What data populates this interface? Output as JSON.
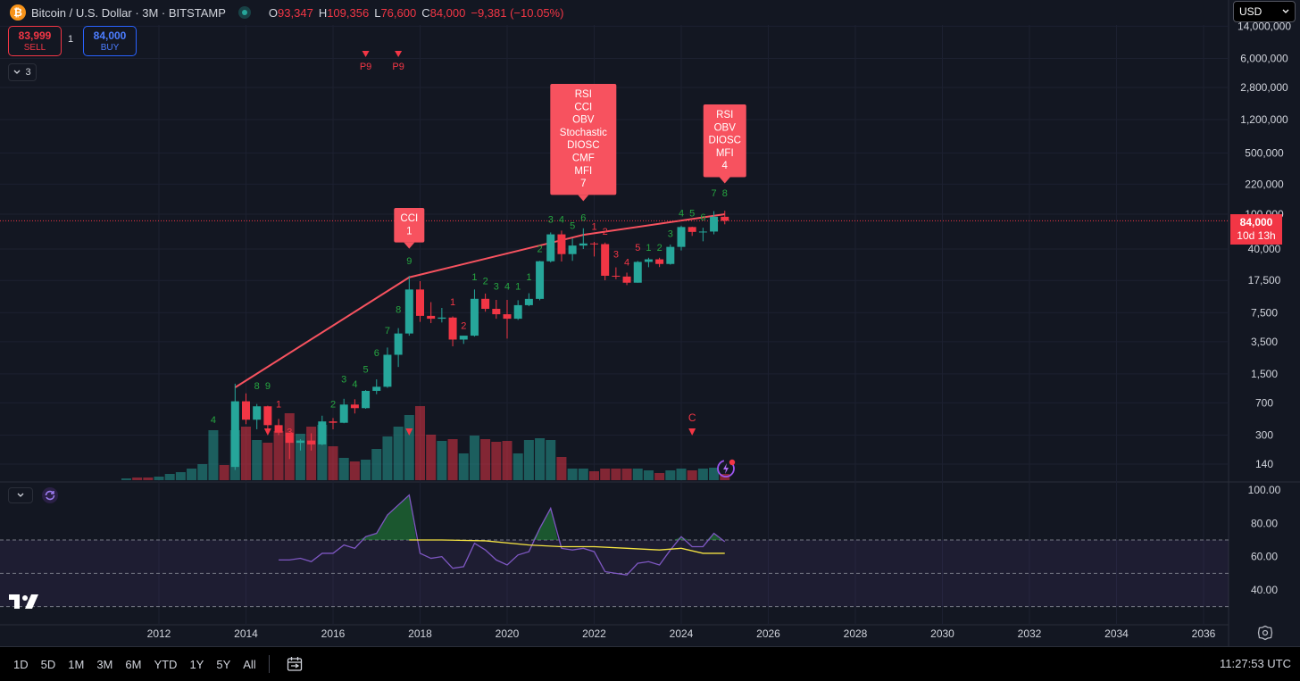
{
  "header": {
    "symbol_title": "Bitcoin / U.S. Dollar · 3M · BITSTAMP",
    "open_label": "O",
    "open": "93,347",
    "high_label": "H",
    "high": "109,356",
    "low_label": "L",
    "low": "76,600",
    "close_label": "C",
    "close": "84,000",
    "change": "−9,381 (−10.05%)"
  },
  "trade": {
    "sell_price": "83,999",
    "sell_label": "SELL",
    "buy_price": "84,000",
    "buy_label": "BUY",
    "quantity": "1"
  },
  "indicators_collapse": {
    "count": "3"
  },
  "currency": {
    "selected": "USD"
  },
  "price_tag": {
    "price": "84,000",
    "countdown": "10d 13h"
  },
  "bottom": {
    "ranges": [
      "1D",
      "5D",
      "1M",
      "3M",
      "6M",
      "YTD",
      "1Y",
      "5Y",
      "All"
    ],
    "clock": "11:27:53 UTC"
  },
  "colors": {
    "up": "#26a69a",
    "down": "#f23645",
    "rsi_line": "#7e57c2",
    "rsi_ma": "#f5e342",
    "trendline": "#f7525f",
    "background": "#131722"
  },
  "chart_data": {
    "type": "candlestick",
    "y_scale": "log",
    "price_axis_ticks": [
      "14,000,000",
      "6,000,000",
      "2,800,000",
      "1,200,000",
      "500,000",
      "220,000",
      "100,000",
      "40,000",
      "17,500",
      "7,500",
      "3,500",
      "1,500",
      "700",
      "300",
      "140"
    ],
    "x_axis_ticks": [
      "2012",
      "2014",
      "2016",
      "2018",
      "2020",
      "2022",
      "2024",
      "2026",
      "2028",
      "2030",
      "2032",
      "2034",
      "2036"
    ],
    "candles": [
      {
        "t": 2013.75,
        "o": 130,
        "h": 1160,
        "l": 120,
        "c": 730
      },
      {
        "t": 2014.0,
        "o": 730,
        "h": 900,
        "l": 400,
        "c": 450
      },
      {
        "t": 2014.25,
        "o": 450,
        "h": 680,
        "l": 350,
        "c": 640
      },
      {
        "t": 2014.5,
        "o": 640,
        "h": 650,
        "l": 350,
        "c": 390
      },
      {
        "t": 2014.75,
        "o": 390,
        "h": 460,
        "l": 300,
        "c": 320
      },
      {
        "t": 2015.0,
        "o": 320,
        "h": 320,
        "l": 160,
        "c": 245
      },
      {
        "t": 2015.25,
        "o": 245,
        "h": 270,
        "l": 200,
        "c": 260
      },
      {
        "t": 2015.5,
        "o": 260,
        "h": 315,
        "l": 200,
        "c": 235
      },
      {
        "t": 2015.75,
        "o": 235,
        "h": 500,
        "l": 230,
        "c": 430
      },
      {
        "t": 2016.0,
        "o": 430,
        "h": 470,
        "l": 350,
        "c": 415
      },
      {
        "t": 2016.25,
        "o": 415,
        "h": 780,
        "l": 410,
        "c": 670
      },
      {
        "t": 2016.5,
        "o": 670,
        "h": 770,
        "l": 530,
        "c": 610
      },
      {
        "t": 2016.75,
        "o": 610,
        "h": 980,
        "l": 600,
        "c": 960
      },
      {
        "t": 2017.0,
        "o": 960,
        "h": 1300,
        "l": 880,
        "c": 1070
      },
      {
        "t": 2017.25,
        "o": 1070,
        "h": 3000,
        "l": 1040,
        "c": 2480
      },
      {
        "t": 2017.5,
        "o": 2480,
        "h": 5000,
        "l": 1800,
        "c": 4340
      },
      {
        "t": 2017.75,
        "o": 4340,
        "h": 19700,
        "l": 4100,
        "c": 13800
      },
      {
        "t": 2018.0,
        "o": 13800,
        "h": 17200,
        "l": 5900,
        "c": 6900
      },
      {
        "t": 2018.25,
        "o": 6900,
        "h": 9900,
        "l": 5700,
        "c": 6400
      },
      {
        "t": 2018.5,
        "o": 6400,
        "h": 8500,
        "l": 5800,
        "c": 6600
      },
      {
        "t": 2018.75,
        "o": 6600,
        "h": 6800,
        "l": 3100,
        "c": 3700
      },
      {
        "t": 2019.0,
        "o": 3700,
        "h": 4100,
        "l": 3300,
        "c": 4100
      },
      {
        "t": 2019.25,
        "o": 4100,
        "h": 13800,
        "l": 4000,
        "c": 10800
      },
      {
        "t": 2019.5,
        "o": 10800,
        "h": 12400,
        "l": 7700,
        "c": 8300
      },
      {
        "t": 2019.75,
        "o": 8300,
        "h": 10500,
        "l": 6400,
        "c": 7200
      },
      {
        "t": 2020.0,
        "o": 7200,
        "h": 10500,
        "l": 3800,
        "c": 6400
      },
      {
        "t": 2020.25,
        "o": 6400,
        "h": 10400,
        "l": 6200,
        "c": 9140
      },
      {
        "t": 2020.5,
        "o": 9140,
        "h": 12500,
        "l": 8900,
        "c": 10780
      },
      {
        "t": 2020.75,
        "o": 10780,
        "h": 29300,
        "l": 10400,
        "c": 28990
      },
      {
        "t": 2021.0,
        "o": 28990,
        "h": 61800,
        "l": 28100,
        "c": 58800
      },
      {
        "t": 2021.25,
        "o": 58800,
        "h": 64900,
        "l": 28800,
        "c": 35000
      },
      {
        "t": 2021.5,
        "o": 35000,
        "h": 52900,
        "l": 29300,
        "c": 43800
      },
      {
        "t": 2021.75,
        "o": 43800,
        "h": 69000,
        "l": 40000,
        "c": 46300
      },
      {
        "t": 2022.0,
        "o": 46300,
        "h": 48200,
        "l": 32900,
        "c": 45500
      },
      {
        "t": 2022.25,
        "o": 45500,
        "h": 47400,
        "l": 17600,
        "c": 19800
      },
      {
        "t": 2022.5,
        "o": 19800,
        "h": 24700,
        "l": 18100,
        "c": 19400
      },
      {
        "t": 2022.75,
        "o": 19400,
        "h": 21500,
        "l": 15500,
        "c": 16500
      },
      {
        "t": 2023.0,
        "o": 16500,
        "h": 29200,
        "l": 16500,
        "c": 28500
      },
      {
        "t": 2023.25,
        "o": 28500,
        "h": 31800,
        "l": 24800,
        "c": 30500
      },
      {
        "t": 2023.5,
        "o": 30500,
        "h": 31800,
        "l": 24900,
        "c": 27000
      },
      {
        "t": 2023.75,
        "o": 27000,
        "h": 45000,
        "l": 26500,
        "c": 42300
      },
      {
        "t": 2024.0,
        "o": 42300,
        "h": 73800,
        "l": 38500,
        "c": 71300
      },
      {
        "t": 2024.25,
        "o": 71300,
        "h": 72000,
        "l": 56500,
        "c": 62700
      },
      {
        "t": 2024.5,
        "o": 62700,
        "h": 70000,
        "l": 49000,
        "c": 63300
      },
      {
        "t": 2024.75,
        "o": 63300,
        "h": 108300,
        "l": 58900,
        "c": 93400
      },
      {
        "t": 2025.0,
        "o": 93347,
        "h": 109356,
        "l": 76600,
        "c": 84000
      }
    ],
    "volumes": [
      {
        "t": 2011.25,
        "v": 2,
        "up": true
      },
      {
        "t": 2011.5,
        "v": 3,
        "up": false
      },
      {
        "t": 2011.75,
        "v": 3,
        "up": false
      },
      {
        "t": 2012.0,
        "v": 4,
        "up": true
      },
      {
        "t": 2012.25,
        "v": 7,
        "up": true
      },
      {
        "t": 2012.5,
        "v": 9,
        "up": true
      },
      {
        "t": 2012.75,
        "v": 13,
        "up": true
      },
      {
        "t": 2013.0,
        "v": 18,
        "up": true
      },
      {
        "t": 2013.25,
        "v": 56,
        "up": true
      },
      {
        "t": 2013.5,
        "v": 17,
        "up": false
      },
      {
        "t": 2013.75,
        "v": 56,
        "up": true
      },
      {
        "t": 2014.0,
        "v": 60,
        "up": false
      },
      {
        "t": 2014.25,
        "v": 45,
        "up": true
      },
      {
        "t": 2014.5,
        "v": 42,
        "up": false
      },
      {
        "t": 2014.75,
        "v": 55,
        "up": false
      },
      {
        "t": 2015.0,
        "v": 75,
        "up": false
      },
      {
        "t": 2015.25,
        "v": 52,
        "up": true
      },
      {
        "t": 2015.5,
        "v": 60,
        "up": false
      },
      {
        "t": 2015.75,
        "v": 62,
        "up": true
      },
      {
        "t": 2016.0,
        "v": 38,
        "up": false
      },
      {
        "t": 2016.25,
        "v": 25,
        "up": true
      },
      {
        "t": 2016.5,
        "v": 21,
        "up": false
      },
      {
        "t": 2016.75,
        "v": 23,
        "up": true
      },
      {
        "t": 2017.0,
        "v": 35,
        "up": true
      },
      {
        "t": 2017.25,
        "v": 49,
        "up": true
      },
      {
        "t": 2017.5,
        "v": 60,
        "up": true
      },
      {
        "t": 2017.75,
        "v": 73,
        "up": true
      },
      {
        "t": 2018.0,
        "v": 83,
        "up": false
      },
      {
        "t": 2018.25,
        "v": 51,
        "up": false
      },
      {
        "t": 2018.5,
        "v": 44,
        "up": true
      },
      {
        "t": 2018.75,
        "v": 46,
        "up": false
      },
      {
        "t": 2019.0,
        "v": 30,
        "up": true
      },
      {
        "t": 2019.25,
        "v": 50,
        "up": true
      },
      {
        "t": 2019.5,
        "v": 46,
        "up": false
      },
      {
        "t": 2019.75,
        "v": 43,
        "up": false
      },
      {
        "t": 2020.0,
        "v": 44,
        "up": false
      },
      {
        "t": 2020.25,
        "v": 30,
        "up": true
      },
      {
        "t": 2020.5,
        "v": 45,
        "up": true
      },
      {
        "t": 2020.75,
        "v": 47,
        "up": true
      },
      {
        "t": 2021.0,
        "v": 45,
        "up": true
      },
      {
        "t": 2021.25,
        "v": 26,
        "up": false
      },
      {
        "t": 2021.5,
        "v": 13,
        "up": true
      },
      {
        "t": 2021.75,
        "v": 13,
        "up": true
      },
      {
        "t": 2022.0,
        "v": 10,
        "up": false
      },
      {
        "t": 2022.25,
        "v": 13,
        "up": false
      },
      {
        "t": 2022.5,
        "v": 13,
        "up": false
      },
      {
        "t": 2022.75,
        "v": 13,
        "up": false
      },
      {
        "t": 2023.0,
        "v": 13,
        "up": true
      },
      {
        "t": 2023.25,
        "v": 11,
        "up": true
      },
      {
        "t": 2023.5,
        "v": 8,
        "up": false
      },
      {
        "t": 2023.75,
        "v": 11,
        "up": true
      },
      {
        "t": 2024.0,
        "v": 13,
        "up": true
      },
      {
        "t": 2024.25,
        "v": 11,
        "up": false
      },
      {
        "t": 2024.5,
        "v": 13,
        "up": true
      },
      {
        "t": 2024.75,
        "v": 14,
        "up": true
      },
      {
        "t": 2025.0,
        "v": 7,
        "up": false
      }
    ],
    "trendline": [
      {
        "t": 2013.75,
        "p": 1050
      },
      {
        "t": 2017.75,
        "p": 19000
      },
      {
        "t": 2021.75,
        "p": 58000
      },
      {
        "t": 2025.0,
        "p": 100000
      }
    ],
    "last_price_line": 84000,
    "td_counts": [
      {
        "t": 2013.25,
        "p": 410,
        "label": "4",
        "color": "green"
      },
      {
        "t": 2014.25,
        "p": 1000,
        "label": "8",
        "color": "green"
      },
      {
        "t": 2014.5,
        "p": 1000,
        "label": "9",
        "color": "green"
      },
      {
        "t": 2014.75,
        "p": 620,
        "label": "1",
        "color": "red"
      },
      {
        "t": 2015.0,
        "p": 300,
        "label": "3",
        "color": "red"
      },
      {
        "t": 2016.0,
        "p": 620,
        "label": "2",
        "color": "green"
      },
      {
        "t": 2016.25,
        "p": 1200,
        "label": "3",
        "color": "green"
      },
      {
        "t": 2016.5,
        "p": 1050,
        "label": "4",
        "color": "green"
      },
      {
        "t": 2016.75,
        "p": 1550,
        "label": "5",
        "color": "green"
      },
      {
        "t": 2017.0,
        "p": 2400,
        "label": "6",
        "color": "green"
      },
      {
        "t": 2017.25,
        "p": 4300,
        "label": "7",
        "color": "green"
      },
      {
        "t": 2017.5,
        "p": 7500,
        "label": "8",
        "color": "green"
      },
      {
        "t": 2017.75,
        "p": 27000,
        "label": "9",
        "color": "green"
      },
      {
        "t": 2018.75,
        "p": 9100,
        "label": "1",
        "color": "red"
      },
      {
        "t": 2019.0,
        "p": 4900,
        "label": "2",
        "color": "red"
      },
      {
        "t": 2019.25,
        "p": 17500,
        "label": "1",
        "color": "green"
      },
      {
        "t": 2019.5,
        "p": 15800,
        "label": "2",
        "color": "green"
      },
      {
        "t": 2019.75,
        "p": 13800,
        "label": "3",
        "color": "green"
      },
      {
        "t": 2020.0,
        "p": 13800,
        "label": "4",
        "color": "green"
      },
      {
        "t": 2020.25,
        "p": 13800,
        "label": "1",
        "color": "green"
      },
      {
        "t": 2020.5,
        "p": 17500,
        "label": "1",
        "color": "green"
      },
      {
        "t": 2020.75,
        "p": 37000,
        "label": "2",
        "color": "green"
      },
      {
        "t": 2021.0,
        "p": 80000,
        "label": "3",
        "color": "green"
      },
      {
        "t": 2021.25,
        "p": 80000,
        "label": "4",
        "color": "green"
      },
      {
        "t": 2021.5,
        "p": 68000,
        "label": "5",
        "color": "green"
      },
      {
        "t": 2021.75,
        "p": 84000,
        "label": "6",
        "color": "green"
      },
      {
        "t": 2022.0,
        "p": 66000,
        "label": "1",
        "color": "red"
      },
      {
        "t": 2022.25,
        "p": 58000,
        "label": "2",
        "color": "red"
      },
      {
        "t": 2022.5,
        "p": 32000,
        "label": "3",
        "color": "red"
      },
      {
        "t": 2022.75,
        "p": 26000,
        "label": "4",
        "color": "red"
      },
      {
        "t": 2023.0,
        "p": 38000,
        "label": "5",
        "color": "red"
      },
      {
        "t": 2023.25,
        "p": 38000,
        "label": "1",
        "color": "green"
      },
      {
        "t": 2023.5,
        "p": 38000,
        "label": "2",
        "color": "green"
      },
      {
        "t": 2023.75,
        "p": 55000,
        "label": "3",
        "color": "green"
      },
      {
        "t": 2024.0,
        "p": 94000,
        "label": "4",
        "color": "green"
      },
      {
        "t": 2024.25,
        "p": 94000,
        "label": "5",
        "color": "green"
      },
      {
        "t": 2024.5,
        "p": 85000,
        "label": "6",
        "color": "green"
      },
      {
        "t": 2024.75,
        "p": 160000,
        "label": "7",
        "color": "green"
      },
      {
        "t": 2025.0,
        "p": 160000,
        "label": "8",
        "color": "green"
      }
    ],
    "perfect_markers": [
      {
        "t": 2016.75,
        "label": "P9"
      },
      {
        "t": 2017.5,
        "label": "P9"
      }
    ],
    "down_arrows": [
      {
        "t": 2014.5,
        "p": 330
      },
      {
        "t": 2017.75,
        "p": 330
      },
      {
        "t": 2024.25,
        "p": 330,
        "label": "C"
      }
    ],
    "divergence_boxes": [
      {
        "t": 2017.75,
        "lines": [
          "CCI",
          "1"
        ]
      },
      {
        "t": 2021.75,
        "lines": [
          "RSI",
          "CCI",
          "OBV",
          "Stochastic",
          "DIOSC",
          "CMF",
          "MFI",
          "7"
        ]
      },
      {
        "t": 2025.0,
        "lines": [
          "RSI",
          "OBV",
          "DIOSC",
          "MFI",
          "4"
        ]
      }
    ],
    "rsi": {
      "axis_ticks": [
        "100.00",
        "80.00",
        "60.00",
        "40.00"
      ],
      "upper_band": 70,
      "mid_band": 50,
      "lower_band": 30,
      "values": [
        {
          "t": 2014.75,
          "v": 58
        },
        {
          "t": 2015.0,
          "v": 58
        },
        {
          "t": 2015.25,
          "v": 59
        },
        {
          "t": 2015.5,
          "v": 57
        },
        {
          "t": 2015.75,
          "v": 62
        },
        {
          "t": 2016.0,
          "v": 62
        },
        {
          "t": 2016.25,
          "v": 67
        },
        {
          "t": 2016.5,
          "v": 65
        },
        {
          "t": 2016.75,
          "v": 72
        },
        {
          "t": 2017.0,
          "v": 74
        },
        {
          "t": 2017.25,
          "v": 85
        },
        {
          "t": 2017.5,
          "v": 91
        },
        {
          "t": 2017.75,
          "v": 97
        },
        {
          "t": 2018.0,
          "v": 62
        },
        {
          "t": 2018.25,
          "v": 59
        },
        {
          "t": 2018.5,
          "v": 60
        },
        {
          "t": 2018.75,
          "v": 53
        },
        {
          "t": 2019.0,
          "v": 54
        },
        {
          "t": 2019.25,
          "v": 68
        },
        {
          "t": 2019.5,
          "v": 64
        },
        {
          "t": 2019.75,
          "v": 58
        },
        {
          "t": 2020.0,
          "v": 55
        },
        {
          "t": 2020.25,
          "v": 61
        },
        {
          "t": 2020.5,
          "v": 63
        },
        {
          "t": 2020.75,
          "v": 77
        },
        {
          "t": 2021.0,
          "v": 89
        },
        {
          "t": 2021.25,
          "v": 65
        },
        {
          "t": 2021.5,
          "v": 64
        },
        {
          "t": 2021.75,
          "v": 65
        },
        {
          "t": 2022.0,
          "v": 63
        },
        {
          "t": 2022.25,
          "v": 51
        },
        {
          "t": 2022.5,
          "v": 50
        },
        {
          "t": 2022.75,
          "v": 49
        },
        {
          "t": 2023.0,
          "v": 56
        },
        {
          "t": 2023.25,
          "v": 57
        },
        {
          "t": 2023.5,
          "v": 55
        },
        {
          "t": 2023.75,
          "v": 64
        },
        {
          "t": 2024.0,
          "v": 72
        },
        {
          "t": 2024.25,
          "v": 66
        },
        {
          "t": 2024.5,
          "v": 66
        },
        {
          "t": 2024.75,
          "v": 74
        },
        {
          "t": 2025.0,
          "v": 69
        }
      ],
      "ma_values": [
        {
          "t": 2017.75,
          "v": 70
        },
        {
          "t": 2018.5,
          "v": 70
        },
        {
          "t": 2019.5,
          "v": 69.5
        },
        {
          "t": 2020.5,
          "v": 67
        },
        {
          "t": 2021.25,
          "v": 66
        },
        {
          "t": 2022.0,
          "v": 66
        },
        {
          "t": 2022.75,
          "v": 65
        },
        {
          "t": 2023.5,
          "v": 64
        },
        {
          "t": 2024.0,
          "v": 65
        },
        {
          "t": 2024.5,
          "v": 62
        },
        {
          "t": 2025.0,
          "v": 62
        }
      ]
    }
  }
}
